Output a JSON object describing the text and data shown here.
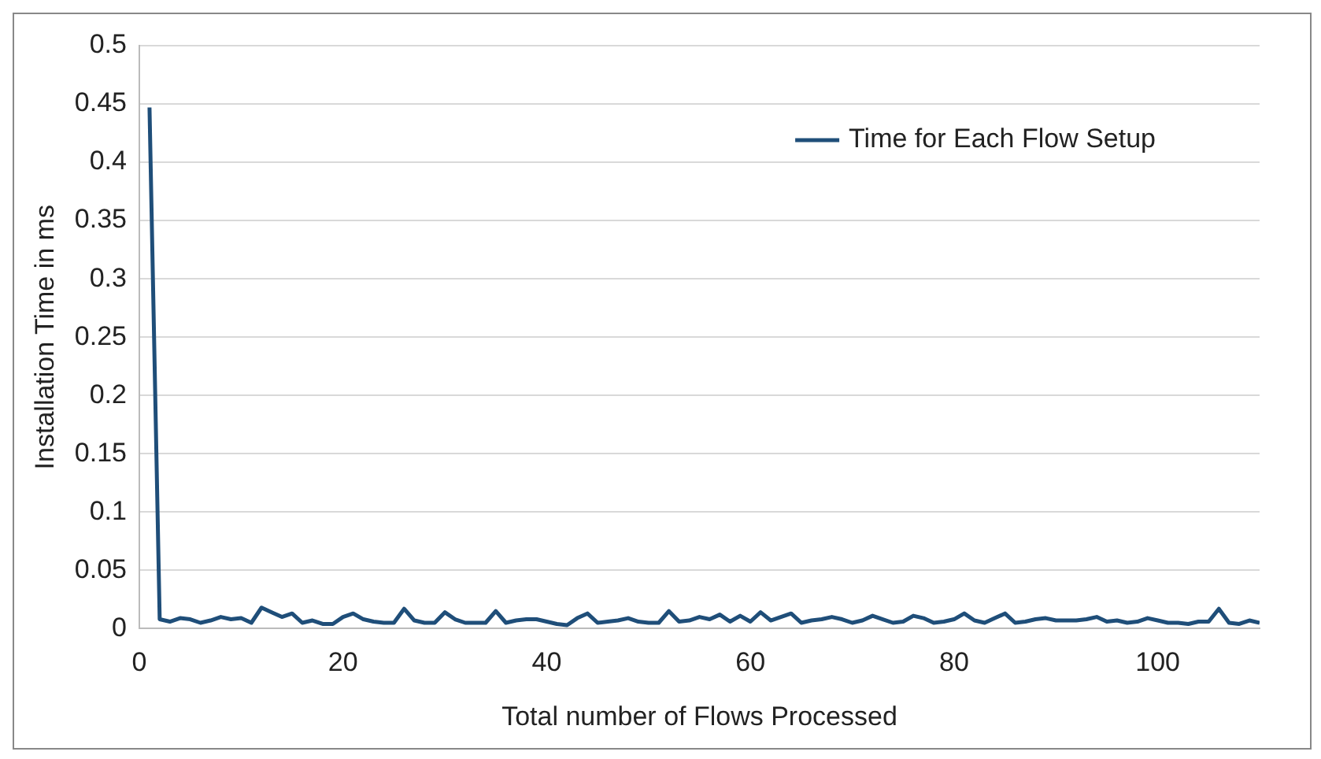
{
  "chart_data": {
    "type": "line",
    "xlabel": "Total number of Flows Processed",
    "ylabel": "Installation Time in ms",
    "x": [
      1,
      2,
      3,
      4,
      5,
      6,
      7,
      8,
      9,
      10,
      11,
      12,
      13,
      14,
      15,
      16,
      17,
      18,
      19,
      20,
      21,
      22,
      23,
      24,
      25,
      26,
      27,
      28,
      29,
      30,
      31,
      32,
      33,
      34,
      35,
      36,
      37,
      38,
      39,
      40,
      41,
      42,
      43,
      44,
      45,
      46,
      47,
      48,
      49,
      50,
      51,
      52,
      53,
      54,
      55,
      56,
      57,
      58,
      59,
      60,
      61,
      62,
      63,
      64,
      65,
      66,
      67,
      68,
      69,
      70,
      71,
      72,
      73,
      74,
      75,
      76,
      77,
      78,
      79,
      80,
      81,
      82,
      83,
      84,
      85,
      86,
      87,
      88,
      89,
      90,
      91,
      92,
      93,
      94,
      95,
      96,
      97,
      98,
      99,
      100,
      101,
      102,
      103,
      104,
      105,
      106,
      107,
      108,
      109,
      110
    ],
    "series": [
      {
        "name": "Time for Each Flow Setup",
        "color": "#1f4e79",
        "values": [
          0.447,
          0.008,
          0.006,
          0.009,
          0.008,
          0.005,
          0.007,
          0.01,
          0.008,
          0.009,
          0.005,
          0.018,
          0.014,
          0.01,
          0.013,
          0.005,
          0.007,
          0.004,
          0.004,
          0.01,
          0.013,
          0.008,
          0.006,
          0.005,
          0.005,
          0.017,
          0.007,
          0.005,
          0.005,
          0.014,
          0.008,
          0.005,
          0.005,
          0.005,
          0.015,
          0.005,
          0.007,
          0.008,
          0.008,
          0.006,
          0.004,
          0.003,
          0.009,
          0.013,
          0.005,
          0.006,
          0.007,
          0.009,
          0.006,
          0.005,
          0.005,
          0.015,
          0.006,
          0.007,
          0.01,
          0.008,
          0.012,
          0.006,
          0.011,
          0.006,
          0.014,
          0.007,
          0.01,
          0.013,
          0.005,
          0.007,
          0.008,
          0.01,
          0.008,
          0.005,
          0.007,
          0.011,
          0.008,
          0.005,
          0.006,
          0.011,
          0.009,
          0.005,
          0.006,
          0.008,
          0.013,
          0.007,
          0.005,
          0.009,
          0.013,
          0.005,
          0.006,
          0.008,
          0.009,
          0.007,
          0.007,
          0.007,
          0.008,
          0.01,
          0.006,
          0.007,
          0.005,
          0.006,
          0.009,
          0.007,
          0.005,
          0.005,
          0.004,
          0.006,
          0.006,
          0.017,
          0.005,
          0.004,
          0.007,
          0.005
        ]
      }
    ],
    "xlim": [
      0,
      110
    ],
    "xticks": [
      0,
      20,
      40,
      60,
      80,
      100
    ],
    "ylim": [
      0,
      0.5
    ],
    "yticks": [
      0,
      0.05,
      0.1,
      0.15,
      0.2,
      0.25,
      0.3,
      0.35,
      0.4,
      0.45,
      0.5
    ],
    "grid": "y",
    "legend": "top right",
    "marker": "none",
    "line_style": "solid"
  }
}
